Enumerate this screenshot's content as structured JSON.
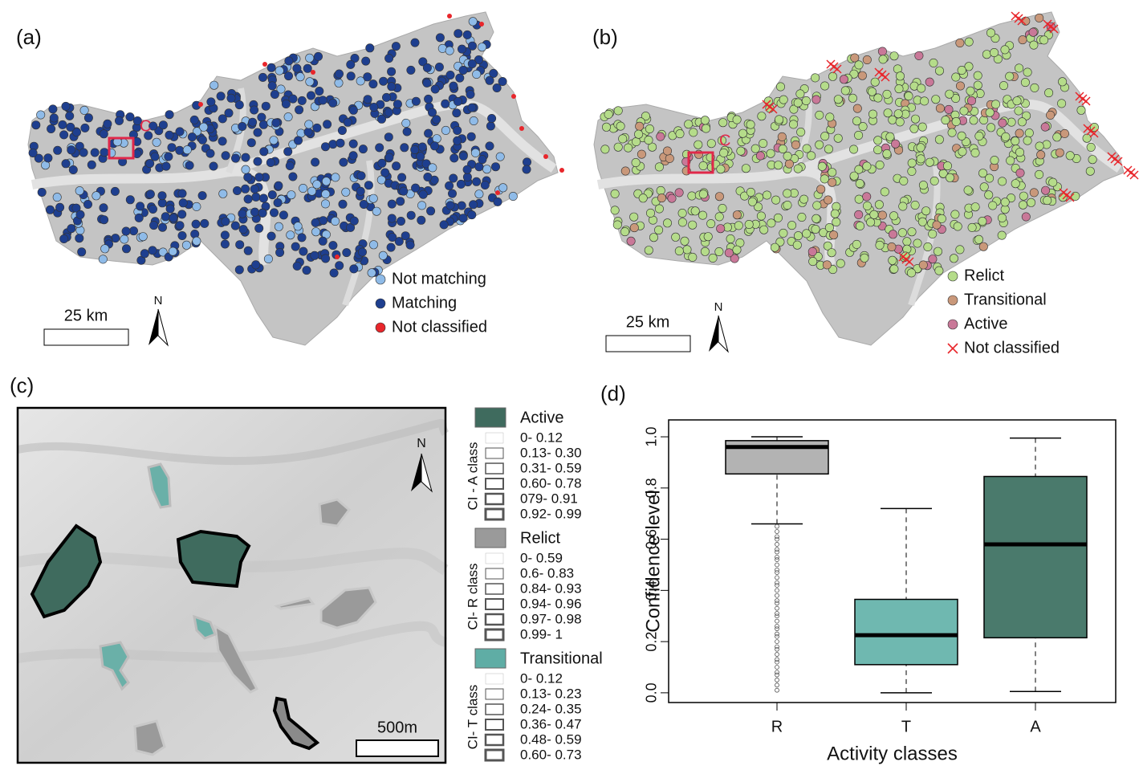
{
  "panel_a": {
    "label": "(a)",
    "inset_label": "C",
    "scale_label": "25 km",
    "north": "N",
    "legend": [
      {
        "name": "Not matching",
        "color": "#8fbbe8"
      },
      {
        "name": "Matching",
        "color": "#1e3f8f"
      },
      {
        "name": "Not classified",
        "color": "#e8262b"
      }
    ]
  },
  "panel_b": {
    "label": "(b)",
    "inset_label": "C",
    "scale_label": "25 km",
    "north": "N",
    "legend": [
      {
        "name": "Relict",
        "color": "#b5dc8a"
      },
      {
        "name": "Transitional",
        "color": "#c9987a"
      },
      {
        "name": "Active",
        "color": "#c97898"
      },
      {
        "name": "Not classified",
        "color": "#e8262b"
      }
    ]
  },
  "panel_c": {
    "label": "(c)",
    "scale_label": "500m",
    "north": "N",
    "legend_groups": [
      {
        "title": "Active",
        "color": "#3f6b5e",
        "axis_label": "CI - A class",
        "classes": [
          "0- 0.12",
          "0.13- 0.30",
          "0.31- 0.59",
          "0.60- 0.78",
          "079- 0.91",
          "0.92- 0.99"
        ]
      },
      {
        "title": "Relict",
        "color": "#9a9a9a",
        "axis_label": "CI- R class",
        "classes": [
          "0- 0.59",
          "0.6- 0.83",
          "0.84- 0.93",
          "0.94- 0.96",
          "0.97- 0.98",
          "0.99- 1"
        ]
      },
      {
        "title": "Transitional",
        "color": "#5fada5",
        "axis_label": "CI- T class",
        "classes": [
          "0- 0.12",
          "0.13- 0.23",
          "0.24- 0.35",
          "0.36- 0.47",
          "0.48- 0.59",
          "0.60- 0.73"
        ]
      }
    ]
  },
  "chart_data": {
    "type": "box",
    "label": "(d)",
    "x_label": "Activity classes",
    "y_label": "Confidence level",
    "categories": [
      "R",
      "T",
      "A"
    ],
    "colors": [
      "#b3b3b3",
      "#6fb8b0",
      "#4a7a6c"
    ],
    "whisker_low": [
      0.66,
      0.0,
      0.005
    ],
    "q1": [
      0.855,
      0.11,
      0.215
    ],
    "median": [
      0.96,
      0.225,
      0.58
    ],
    "q3": [
      0.985,
      0.365,
      0.845
    ],
    "whisker_high": [
      1.0,
      0.72,
      0.995
    ],
    "outliers": [
      [
        0.65,
        0.63,
        0.61,
        0.6,
        0.58,
        0.56,
        0.55,
        0.53,
        0.52,
        0.5,
        0.48,
        0.47,
        0.45,
        0.43,
        0.42,
        0.4,
        0.38,
        0.36,
        0.35,
        0.33,
        0.31,
        0.3,
        0.28,
        0.26,
        0.25,
        0.23,
        0.22,
        0.2,
        0.18,
        0.17,
        0.15,
        0.13,
        0.12,
        0.1,
        0.08,
        0.07,
        0.05,
        0.03,
        0.01
      ],
      [],
      []
    ],
    "ylim": [
      -0.038,
      1.066
    ],
    "yticks": [
      {
        "value": 0,
        "label": "0.0"
      },
      {
        "value": 0.2,
        "label": "0.2"
      },
      {
        "value": 0.4,
        "label": "0.4"
      },
      {
        "value": 0.6,
        "label": "0.6"
      },
      {
        "value": 0.8,
        "label": "0.8"
      },
      {
        "value": 1,
        "label": "1.0"
      }
    ]
  }
}
